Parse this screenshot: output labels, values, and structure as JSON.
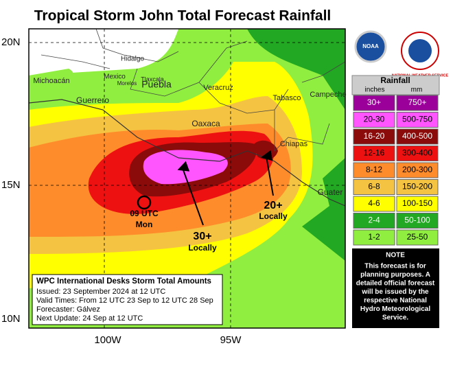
{
  "title": "Tropical Storm John Total Forecast Rainfall",
  "map": {
    "lat_labels": [
      "20N",
      "15N",
      "10N"
    ],
    "lon_labels": [
      "100W",
      "95W"
    ],
    "places": [
      "Hidalgo",
      "Mexico",
      "Tlaxcala",
      "Michoacán",
      "Morelos",
      "Puebla",
      "Guerrero",
      "Veracruz",
      "Tabasco",
      "Campeche",
      "Oaxaca",
      "Chiapas",
      "Guater"
    ],
    "annotations": [
      "09 UTC",
      "Mon",
      "30+",
      "Locally",
      "20+",
      "Locally"
    ]
  },
  "info_box": {
    "title": "WPC International Desks Storm Total Amounts",
    "lines": [
      "Issued:  23 September 2024 at 12 UTC",
      "Valid Times:  From 12 UTC 23 Sep  to  12 UTC 28 Sep",
      "Forecaster: Gálvez",
      "Next Update: 24 Sep at 12 UTC"
    ]
  },
  "logos": {
    "noaa": "NOAA",
    "nws": "NATIONAL WEATHER SERVICE"
  },
  "legend": {
    "title": "Rainfall",
    "unit_inches": "inches",
    "unit_mm": "mm",
    "rows": [
      {
        "inches": "30+",
        "mm": "750+",
        "color": "#9b009b"
      },
      {
        "inches": "20-30",
        "mm": "500-750",
        "color": "#ff55ff"
      },
      {
        "inches": "16-20",
        "mm": "400-500",
        "color": "#8b0a0a"
      },
      {
        "inches": "12-16",
        "mm": "300-400",
        "color": "#ee1111"
      },
      {
        "inches": "8-12",
        "mm": "200-300",
        "color": "#ff8c2a"
      },
      {
        "inches": "6-8",
        "mm": "150-200",
        "color": "#f5c342"
      },
      {
        "inches": "4-6",
        "mm": "100-150",
        "color": "#ffff00"
      },
      {
        "inches": "2-4",
        "mm": "50-100",
        "color": "#22a822"
      },
      {
        "inches": "1-2",
        "mm": "25-50",
        "color": "#90ee40"
      }
    ]
  },
  "note": {
    "title": "NOTE",
    "lines": [
      "This forecast is for",
      "planning purposes. A",
      "detailed official forecast",
      "will be issued by the",
      "respective National",
      "Hydro Meteorological",
      "Service."
    ]
  }
}
